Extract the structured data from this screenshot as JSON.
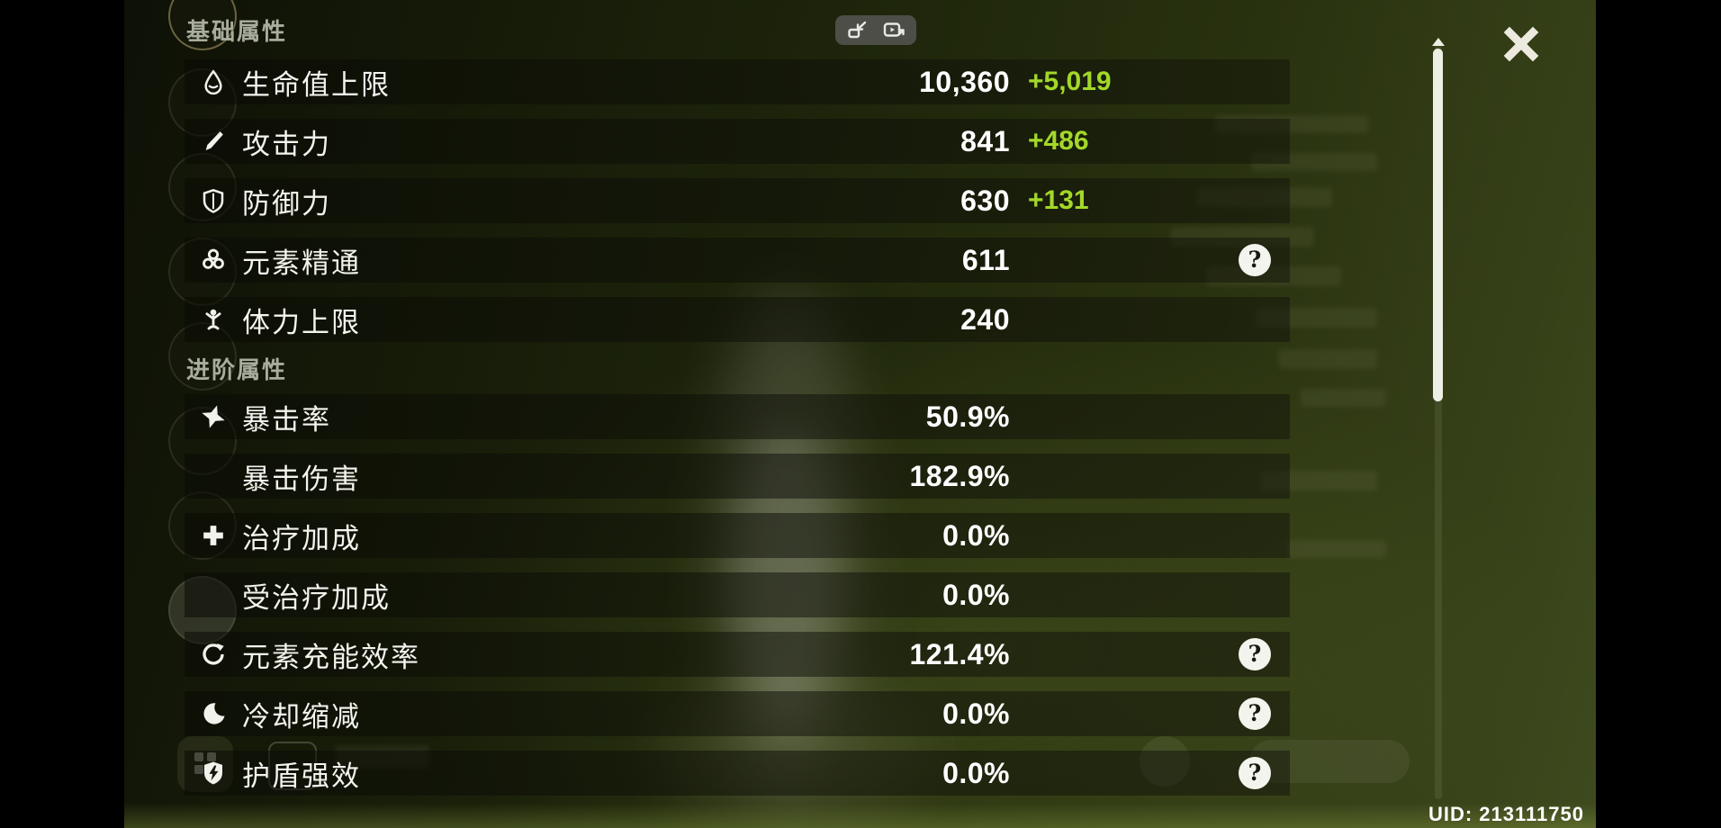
{
  "window": {
    "uid": "UID: 213111750"
  },
  "colors": {
    "bonus_green": "#a3d829",
    "value_white": "#ffffff",
    "section_header_grey": "#a9ad9e",
    "scene_olive": "#2a330f"
  },
  "stats_panel": {
    "sections": [
      {
        "title": "基础属性",
        "rows": [
          {
            "icon": "hp",
            "label": "生命值上限",
            "value": "10,360",
            "bonus": "+5,019",
            "help": false
          },
          {
            "icon": "atk",
            "label": "攻击力",
            "value": "841",
            "bonus": "+486",
            "help": false
          },
          {
            "icon": "def",
            "label": "防御力",
            "value": "630",
            "bonus": "+131",
            "help": false
          },
          {
            "icon": "elemental-mastery",
            "label": "元素精通",
            "value": "611",
            "bonus": "",
            "help": true
          },
          {
            "icon": "stamina",
            "label": "体力上限",
            "value": "240",
            "bonus": "",
            "help": false
          }
        ]
      },
      {
        "title": "进阶属性",
        "rows": [
          {
            "icon": "crit-rate",
            "label": "暴击率",
            "value": "50.9%",
            "bonus": "",
            "help": false
          },
          {
            "icon": "",
            "label": "暴击伤害",
            "value": "182.9%",
            "bonus": "",
            "help": false
          },
          {
            "icon": "healing-bonus",
            "label": "治疗加成",
            "value": "0.0%",
            "bonus": "",
            "help": false
          },
          {
            "icon": "",
            "label": "受治疗加成",
            "value": "0.0%",
            "bonus": "",
            "help": false
          },
          {
            "icon": "energy-recharge",
            "label": "元素充能效率",
            "value": "121.4%",
            "bonus": "",
            "help": true
          },
          {
            "icon": "cooldown-reduction",
            "label": "冷却缩减",
            "value": "0.0%",
            "bonus": "",
            "help": true
          },
          {
            "icon": "shield-strength",
            "label": "护盾强效",
            "value": "0.0%",
            "bonus": "",
            "help": true
          }
        ]
      }
    ],
    "help_glyph": "?"
  }
}
